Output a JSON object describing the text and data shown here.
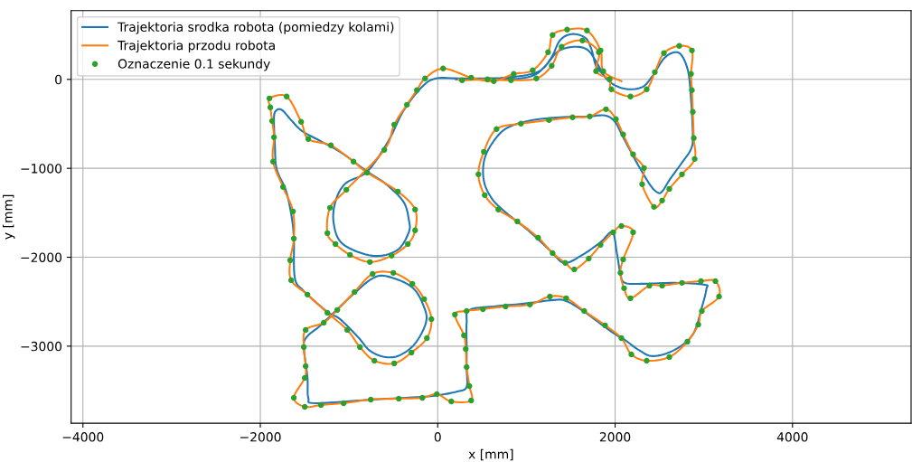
{
  "chart_data": {
    "type": "line",
    "xlabel": "x [mm]",
    "ylabel": "y [mm]",
    "xlim": [
      -4133,
      5337
    ],
    "ylim": [
      -3866,
      773
    ],
    "xticks": [
      -4000,
      -2000,
      0,
      2000,
      4000
    ],
    "yticks": [
      -3000,
      -2000,
      -1000,
      0
    ],
    "grid": true,
    "legend": "top left",
    "line_style": "solid",
    "series": [
      {
        "name": "Trajektoria srodka robota (pomiedzy kolami)",
        "color": "#1f77b4",
        "marker": "none",
        "x": [
          204,
          765,
          1071,
          1224,
          1357,
          1530,
          1683,
          1785,
          1907,
          2091,
          2295,
          2417,
          2550,
          2672,
          2754,
          2825,
          2856,
          2876,
          2856,
          2754,
          2621,
          2530,
          2479,
          2397,
          2244,
          2091,
          1999,
          1887,
          1683,
          1377,
          1071,
          816,
          663,
          530,
          520,
          612,
          765,
          1020,
          1275,
          1428,
          1632,
          1836,
          1969,
          2020,
          2060,
          2111,
          2326,
          2672,
          3009,
          3029,
          2978,
          2876,
          2672,
          2428,
          2264,
          2122,
          1958,
          1652,
          1448,
          1306,
          969,
          632,
          357,
          326,
          326,
          326,
          326,
          224,
          20,
          -184,
          -734,
          -1377,
          -1459,
          -1469,
          -1510,
          -1469,
          -1346,
          -1193,
          -969,
          -734,
          -561,
          -286,
          -153,
          -133,
          -255,
          -428,
          -592,
          -765,
          -898,
          -1102,
          -1244,
          -1510,
          -1612,
          -1622,
          -1652,
          -1714,
          -1816,
          -1836,
          -1846,
          -1816,
          -1754,
          -1652,
          -1530,
          -1306,
          -1071,
          -796,
          -592,
          -388,
          -326,
          -326,
          -459,
          -734,
          -1071,
          -1173,
          -1153,
          -1040,
          -796,
          -561,
          -388,
          -184,
          -20,
          286,
          765,
          1122,
          1275,
          1377,
          1510,
          1663,
          1734,
          1785,
          1887
        ],
        "values": [
          0,
          0,
          41,
          163,
          315,
          366,
          336,
          203,
          0,
          -102,
          -92,
          31,
          234,
          305,
          264,
          81,
          -224,
          -631,
          -783,
          -936,
          -1119,
          -1261,
          -1271,
          -1190,
          -936,
          -651,
          -478,
          -407,
          -417,
          -427,
          -458,
          -529,
          -651,
          -885,
          -1139,
          -1342,
          -1495,
          -1698,
          -1932,
          -2064,
          -1973,
          -1831,
          -1719,
          -1953,
          -2187,
          -2288,
          -2298,
          -2288,
          -2309,
          -2359,
          -2563,
          -2868,
          -3041,
          -3112,
          -3041,
          -2939,
          -2837,
          -2614,
          -2492,
          -2481,
          -2522,
          -2553,
          -2593,
          -2736,
          -3000,
          -3244,
          -3458,
          -3509,
          -3549,
          -3570,
          -3600,
          -3641,
          -3580,
          -3346,
          -3000,
          -2888,
          -2787,
          -2644,
          -2431,
          -2237,
          -2217,
          -2339,
          -2563,
          -2736,
          -2970,
          -3102,
          -3122,
          -3051,
          -2898,
          -2695,
          -2614,
          -2380,
          -2227,
          -1780,
          -1515,
          -1241,
          -1007,
          -732,
          -427,
          -346,
          -346,
          -458,
          -580,
          -702,
          -834,
          -1037,
          -1170,
          -1373,
          -1576,
          -1719,
          -1922,
          -1983,
          -1851,
          -1617,
          -1373,
          -1170,
          -1037,
          -702,
          -356,
          -92,
          10,
          10,
          20,
          81,
          234,
          437,
          509,
          468,
          336,
          153,
          31
        ]
      },
      {
        "name": "Trajektoria przodu robota",
        "color": "#ff7f0e",
        "marker": "none",
        "x": [
          235,
          275,
          561,
          826,
          1112,
          1285,
          1397,
          1632,
          1816,
          1785,
          1938,
          1958,
          2173,
          2356,
          2448,
          2550,
          2723,
          2866,
          2856,
          2866,
          2876,
          2887,
          2897,
          2754,
          2611,
          2530,
          2438,
          2305,
          2326,
          2203,
          2091,
          2009,
          1897,
          1714,
          1520,
          1255,
          938,
          663,
          520,
          459,
          530,
          683,
          898,
          1132,
          1295,
          1438,
          1540,
          1703,
          1836,
          1979,
          2071,
          2203,
          2091,
          2060,
          2101,
          2173,
          2387,
          2530,
          2754,
          2968,
          3131,
          3172,
          2978,
          2938,
          2815,
          2611,
          2356,
          2183,
          2071,
          1887,
          1652,
          1448,
          1265,
          1040,
          765,
          510,
          326,
          194,
          296,
          316,
          326,
          357,
          377,
          153,
          -10,
          -173,
          -439,
          -755,
          -1061,
          -1316,
          -1499,
          -1622,
          -1499,
          -1489,
          -1510,
          -1489,
          -1285,
          -1132,
          -938,
          -734,
          -500,
          -286,
          -153,
          -71,
          -122,
          -296,
          -490,
          -714,
          -877,
          -1020,
          -1244,
          -1469,
          -1652,
          -1663,
          -1622,
          -1632,
          -1744,
          -1856,
          -1846,
          -1867,
          -1887,
          -1897,
          -1703,
          -1540,
          -1459,
          -1204,
          -949,
          -796,
          -449,
          -255,
          -255,
          -337,
          -520,
          -765,
          -989,
          -1153,
          -1244,
          -1214,
          -1030,
          -602,
          -490,
          -347,
          -235,
          -143,
          61,
          377,
          632,
          857,
          1071,
          1244,
          1295,
          1459,
          1683,
          1836,
          1867,
          2071
        ],
        "values": [
          0,
          -10,
          0,
          -10,
          10,
          153,
          366,
          437,
          305,
          92,
          0,
          -112,
          -193,
          -112,
          81,
          295,
          376,
          325,
          61,
          -122,
          -366,
          -661,
          -895,
          -1068,
          -1231,
          -1363,
          -1434,
          -1180,
          -997,
          -844,
          -620,
          -447,
          -336,
          -417,
          -427,
          -458,
          -498,
          -559,
          -814,
          -1068,
          -1302,
          -1464,
          -1597,
          -1780,
          -1953,
          -2064,
          -2136,
          -2014,
          -1861,
          -1719,
          -1648,
          -1719,
          -2024,
          -2176,
          -2349,
          -2461,
          -2319,
          -2319,
          -2288,
          -2268,
          -2268,
          -2441,
          -2604,
          -2756,
          -2949,
          -3122,
          -3163,
          -3092,
          -2909,
          -2766,
          -2604,
          -2461,
          -2441,
          -2532,
          -2553,
          -2583,
          -2604,
          -2644,
          -2878,
          -3031,
          -3234,
          -3448,
          -3610,
          -3621,
          -3539,
          -3580,
          -3590,
          -3600,
          -3641,
          -3661,
          -3682,
          -3580,
          -3356,
          -3224,
          -3010,
          -2817,
          -2736,
          -2593,
          -2390,
          -2187,
          -2176,
          -2298,
          -2471,
          -2695,
          -2909,
          -3071,
          -3193,
          -3163,
          -3010,
          -2817,
          -2624,
          -2420,
          -2258,
          -2034,
          -1790,
          -1485,
          -1210,
          -925,
          -651,
          -468,
          -315,
          -214,
          -193,
          -478,
          -671,
          -742,
          -925,
          -1048,
          -1261,
          -1464,
          -1698,
          -1851,
          -1983,
          -2054,
          -1973,
          -1851,
          -1729,
          -1444,
          -1241,
          -793,
          -509,
          -285,
          -122,
          10,
          122,
          20,
          -20,
          61,
          102,
          305,
          498,
          559,
          549,
          325,
          92,
          -20
        ]
      },
      {
        "name": "Oznaczenie 0.1 sekundy",
        "type": "scatter",
        "color": "#2ca02c",
        "marker": "circle",
        "x": [
          275,
          561,
          826,
          1112,
          1285,
          1397,
          1632,
          1816,
          1785,
          1938,
          1958,
          2173,
          2356,
          2448,
          2550,
          2723,
          2866,
          2856,
          2866,
          2876,
          2887,
          2897,
          2754,
          2611,
          2530,
          2438,
          2305,
          2326,
          2203,
          2091,
          2009,
          1897,
          1714,
          1520,
          1255,
          938,
          663,
          520,
          459,
          530,
          683,
          898,
          1132,
          1295,
          1438,
          1540,
          1703,
          1836,
          1979,
          2071,
          2203,
          2091,
          2060,
          2101,
          2173,
          2387,
          2530,
          2754,
          2968,
          3131,
          3172,
          2978,
          2938,
          2815,
          2611,
          2356,
          2183,
          2071,
          1887,
          1652,
          1448,
          1265,
          1040,
          765,
          510,
          326,
          194,
          296,
          316,
          326,
          357,
          377,
          153,
          -10,
          -173,
          -439,
          -755,
          -1061,
          -1316,
          -1499,
          -1622,
          -1499,
          -1489,
          -1510,
          -1489,
          -1285,
          -1132,
          -938,
          -734,
          -500,
          -286,
          -153,
          -71,
          -122,
          -296,
          -490,
          -714,
          -877,
          -1020,
          -1244,
          -1469,
          -1652,
          -1663,
          -1622,
          -1632,
          -1744,
          -1856,
          -1846,
          -1867,
          -1887,
          -1897,
          -1703,
          -1540,
          -1459,
          -1204,
          -949,
          -796,
          -449,
          -255,
          -255,
          -337,
          -520,
          -765,
          -989,
          -1153,
          -1244,
          -1214,
          -1030,
          -602,
          -490,
          -347,
          -235,
          -143,
          61,
          377,
          632,
          857,
          1071,
          1244,
          1295,
          1459,
          1683,
          1836,
          1867
        ],
        "values": [
          -10,
          0,
          -10,
          10,
          153,
          366,
          437,
          305,
          92,
          0,
          -112,
          -193,
          -112,
          81,
          295,
          376,
          325,
          61,
          -122,
          -366,
          -661,
          -895,
          -1068,
          -1231,
          -1363,
          -1434,
          -1180,
          -997,
          -844,
          -620,
          -447,
          -336,
          -417,
          -427,
          -458,
          -498,
          -559,
          -814,
          -1068,
          -1302,
          -1464,
          -1597,
          -1780,
          -1953,
          -2064,
          -2136,
          -2014,
          -1861,
          -1719,
          -1648,
          -1719,
          -2024,
          -2176,
          -2349,
          -2461,
          -2319,
          -2319,
          -2288,
          -2268,
          -2268,
          -2441,
          -2604,
          -2756,
          -2949,
          -3122,
          -3163,
          -3092,
          -2909,
          -2766,
          -2604,
          -2461,
          -2441,
          -2532,
          -2553,
          -2583,
          -2604,
          -2644,
          -2878,
          -3031,
          -3234,
          -3448,
          -3610,
          -3621,
          -3539,
          -3580,
          -3590,
          -3600,
          -3641,
          -3661,
          -3682,
          -3580,
          -3356,
          -3224,
          -3010,
          -2817,
          -2736,
          -2593,
          -2390,
          -2187,
          -2176,
          -2298,
          -2471,
          -2695,
          -2909,
          -3071,
          -3193,
          -3163,
          -3010,
          -2817,
          -2624,
          -2420,
          -2258,
          -2034,
          -1790,
          -1485,
          -1210,
          -925,
          -651,
          -468,
          -315,
          -214,
          -193,
          -478,
          -671,
          -742,
          -925,
          -1048,
          -1261,
          -1464,
          -1698,
          -1851,
          -1983,
          -2054,
          -1973,
          -1851,
          -1729,
          -1444,
          -1241,
          -793,
          -509,
          -285,
          -122,
          10,
          122,
          20,
          -20,
          61,
          102,
          305,
          498,
          559,
          549,
          325,
          92
        ]
      }
    ]
  }
}
